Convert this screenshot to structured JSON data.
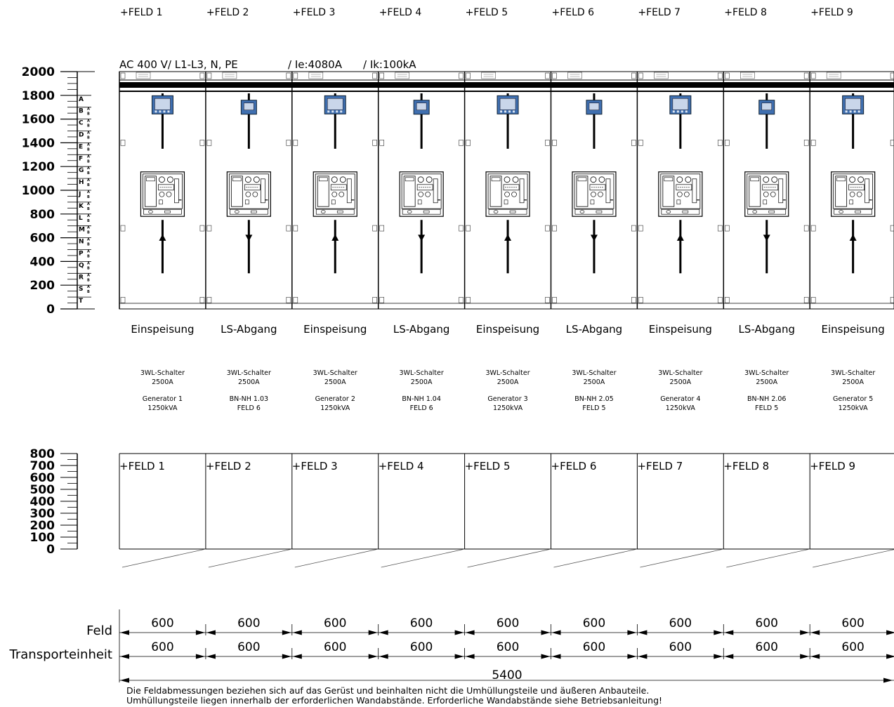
{
  "header": {
    "voltage": "AC  400 V/   L1-L3, N, PE",
    "rated_current": "/ Ie:4080A",
    "short_circuit": "/ Ik:100kA"
  },
  "front_axis": {
    "ticks": [
      "2000",
      "1800",
      "1600",
      "1400",
      "1200",
      "1000",
      "800",
      "600",
      "400",
      "200",
      "0"
    ]
  },
  "row_letters": [
    "A",
    "B",
    "C",
    "D",
    "E",
    "F",
    "G",
    "H",
    "J",
    "K",
    "L",
    "M",
    "N",
    "P",
    "Q",
    "R",
    "S",
    "T"
  ],
  "row_sub": [
    "A",
    "B"
  ],
  "depth_axis": {
    "ticks": [
      "800",
      "700",
      "600",
      "500",
      "400",
      "300",
      "200",
      "100",
      "0"
    ]
  },
  "fields": [
    {
      "label": "+FELD 1",
      "type": "Einspeisung",
      "breaker": "3WL-Schalter",
      "rating": "2500A",
      "detail1": "Generator 1",
      "detail2": "1250kVA",
      "arrow": "up",
      "meter": "large"
    },
    {
      "label": "+FELD 2",
      "type": "LS-Abgang",
      "breaker": "3WL-Schalter",
      "rating": "2500A",
      "detail1": "BN-NH 1.03",
      "detail2": "FELD 6",
      "arrow": "down",
      "meter": "small"
    },
    {
      "label": "+FELD 3",
      "type": "Einspeisung",
      "breaker": "3WL-Schalter",
      "rating": "2500A",
      "detail1": "Generator 2",
      "detail2": "1250kVA",
      "arrow": "up",
      "meter": "large"
    },
    {
      "label": "+FELD 4",
      "type": "LS-Abgang",
      "breaker": "3WL-Schalter",
      "rating": "2500A",
      "detail1": "BN-NH 1.04",
      "detail2": "FELD 6",
      "arrow": "down",
      "meter": "small"
    },
    {
      "label": "+FELD 5",
      "type": "Einspeisung",
      "breaker": "3WL-Schalter",
      "rating": "2500A",
      "detail1": "Generator 3",
      "detail2": "1250kVA",
      "arrow": "up",
      "meter": "large"
    },
    {
      "label": "+FELD 6",
      "type": "LS-Abgang",
      "breaker": "3WL-Schalter",
      "rating": "2500A",
      "detail1": "BN-NH 2.05",
      "detail2": "FELD 5",
      "arrow": "down",
      "meter": "small"
    },
    {
      "label": "+FELD 7",
      "type": "Einspeisung",
      "breaker": "3WL-Schalter",
      "rating": "2500A",
      "detail1": "Generator 4",
      "detail2": "1250kVA",
      "arrow": "up",
      "meter": "large"
    },
    {
      "label": "+FELD 8",
      "type": "LS-Abgang",
      "breaker": "3WL-Schalter",
      "rating": "2500A",
      "detail1": "BN-NH 2.06",
      "detail2": "FELD 5",
      "arrow": "down",
      "meter": "small"
    },
    {
      "label": "+FELD 9",
      "type": "Einspeisung",
      "breaker": "3WL-Schalter",
      "rating": "2500A",
      "detail1": "Generator 5",
      "detail2": "1250kVA",
      "arrow": "up",
      "meter": "large"
    }
  ],
  "dimensions": {
    "feld_label": "Feld",
    "transport_label": "Transporteinheit",
    "feld_widths": [
      "600",
      "600",
      "600",
      "600",
      "600",
      "600",
      "600",
      "600",
      "600"
    ],
    "transport_widths": [
      "600",
      "600",
      "600",
      "600",
      "600",
      "600",
      "600",
      "600",
      "600"
    ],
    "total": "5400"
  },
  "note": {
    "line1": "Die Feldabmessungen beziehen sich auf das Gerüst und beinhalten nicht die Umhüllungsteile und äußeren Anbauteile.",
    "line2": "Umhüllungsteile liegen innerhalb der erforderlichen Wandabstände. Erforderliche Wandabstände siehe Betriebsanleitung!"
  }
}
